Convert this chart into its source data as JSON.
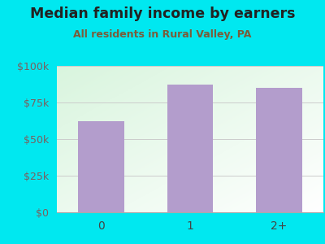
{
  "title": "Median family income by earners",
  "subtitle": "All residents in Rural Valley, PA",
  "categories": [
    "0",
    "1",
    "2+"
  ],
  "values": [
    62000,
    87000,
    85000
  ],
  "bar_color": "#b39dcc",
  "background_color": "#00e8f0",
  "title_color": "#222222",
  "subtitle_color": "#7a5c3a",
  "ytick_color": "#7a6060",
  "xtick_color": "#444444",
  "ylim": [
    0,
    100000
  ],
  "yticks": [
    0,
    25000,
    50000,
    75000,
    100000
  ],
  "ytick_labels": [
    "$0",
    "$25k",
    "$50k",
    "$75k",
    "$100k"
  ],
  "grid_color": "#cccccc"
}
